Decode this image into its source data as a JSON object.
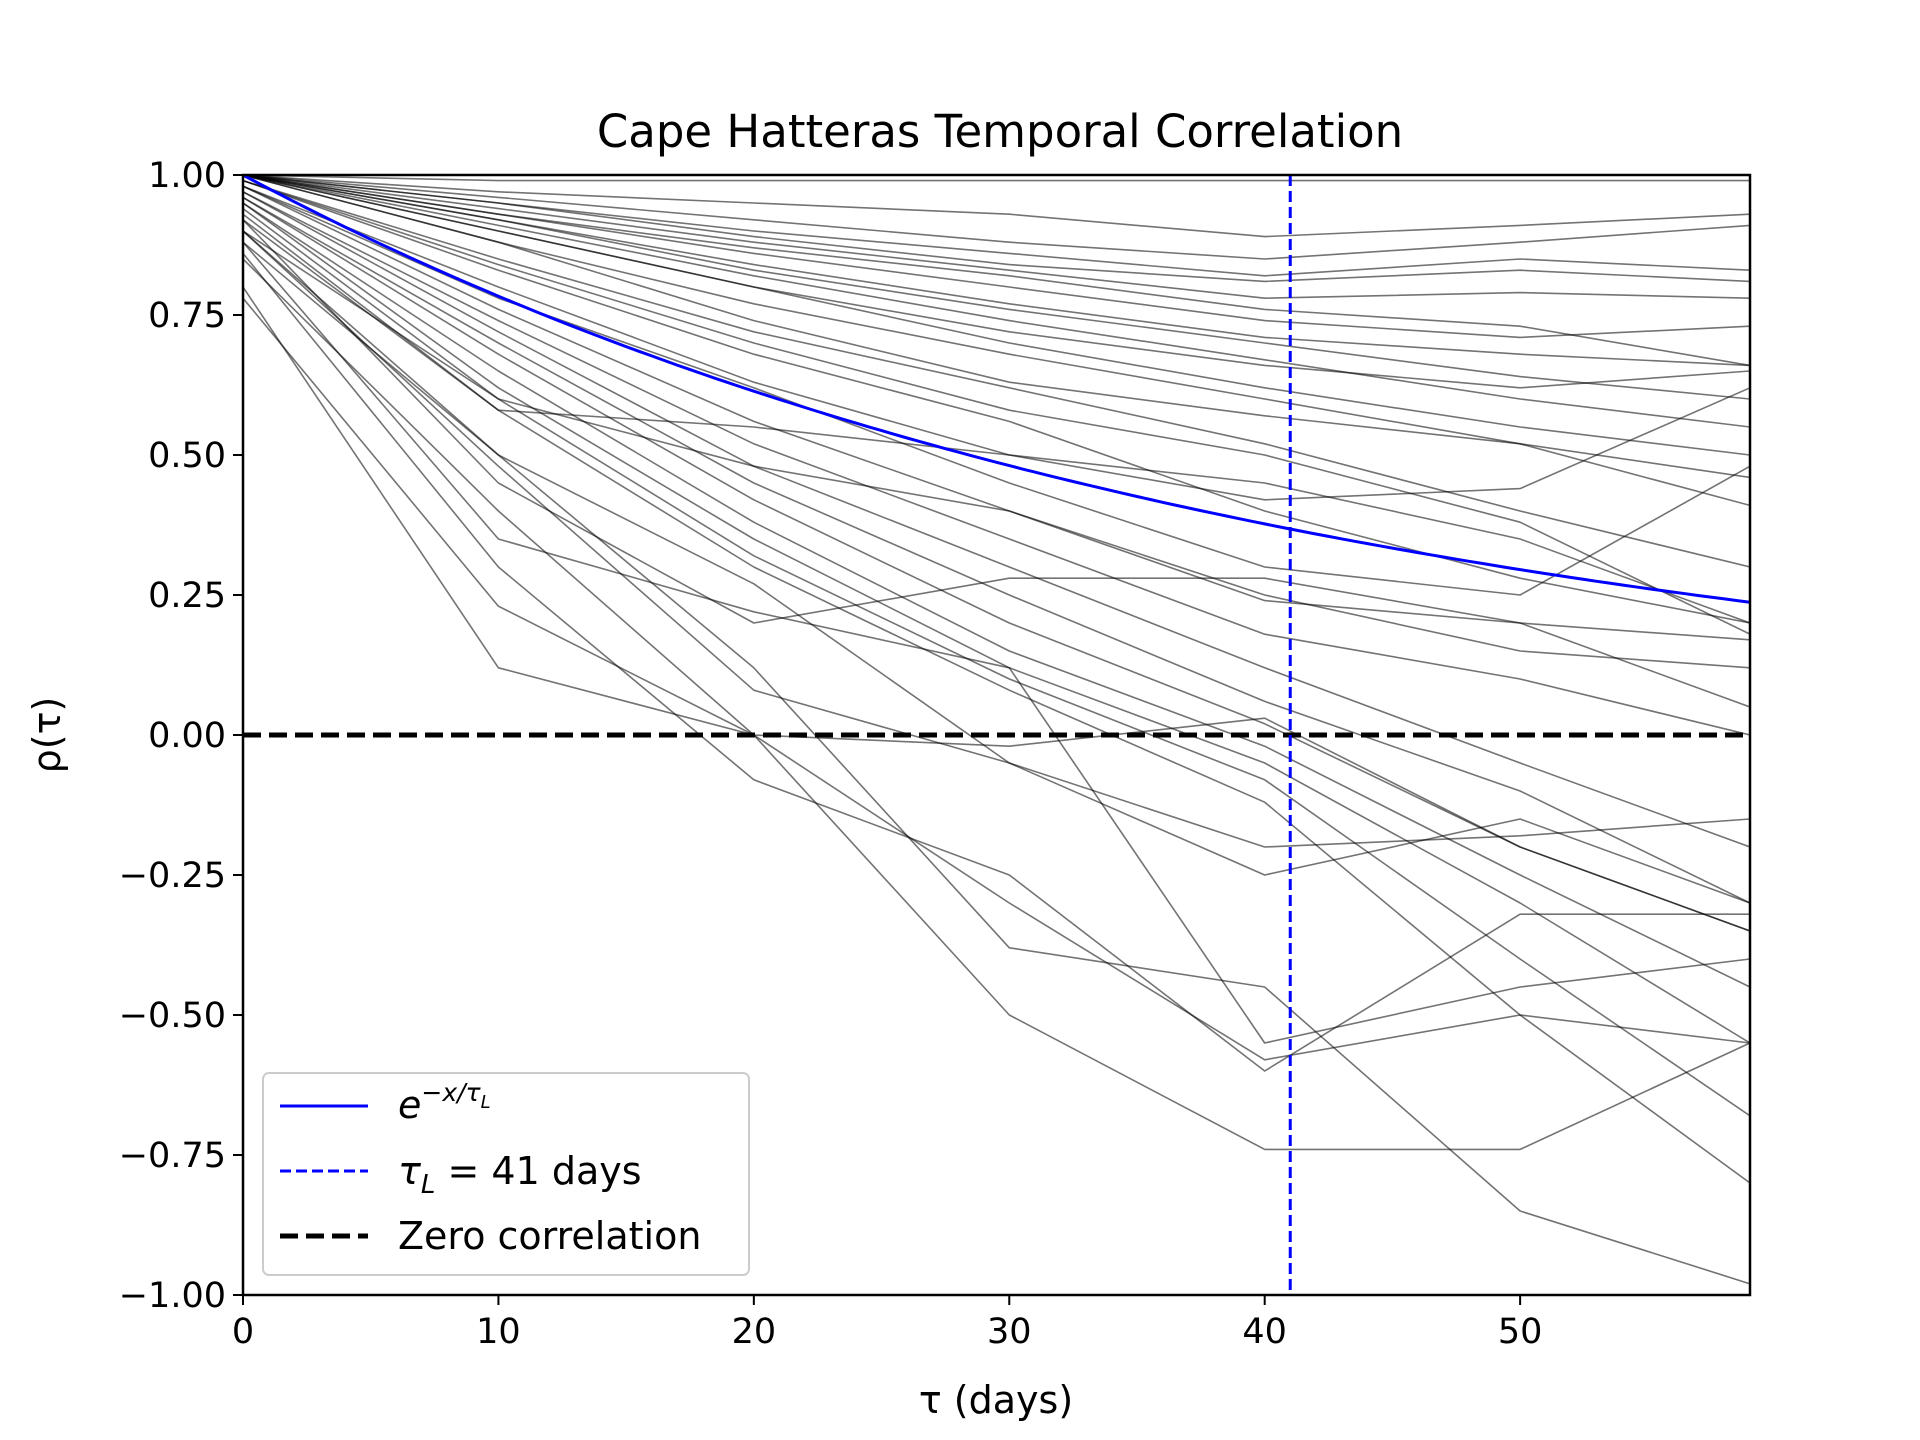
{
  "chart_data": {
    "type": "line",
    "title": "Cape Hatteras Temporal Correlation",
    "xlabel": "τ (days)",
    "ylabel": "ρ(τ)",
    "xlim": [
      0,
      59
    ],
    "ylim": [
      -1.0,
      1.0
    ],
    "xticks": [
      0,
      10,
      20,
      30,
      40,
      50
    ],
    "xtick_labels": [
      "0",
      "10",
      "20",
      "30",
      "40",
      "50"
    ],
    "yticks": [
      1.0,
      0.75,
      0.5,
      0.25,
      0.0,
      -0.25,
      -0.5,
      -0.75,
      -1.0
    ],
    "ytick_labels": [
      "1.00",
      "0.75",
      "0.50",
      "0.25",
      "0.00",
      "−0.25",
      "−0.50",
      "−0.75",
      "−1.00"
    ],
    "grid": false,
    "legend_position": "lower-left",
    "colors": {
      "fit": "#0000ff",
      "tau_line": "#0000ff",
      "zero_line": "#000000",
      "ensemble": "#000000"
    },
    "tau_L": 41,
    "legend": [
      {
        "label_base": "e",
        "label_sup": "−x/τ",
        "label_sup_sub": "L"
      },
      {
        "label_pre": "τ",
        "label_sub": "L",
        "label_post": " = 41 days"
      },
      {
        "label": "Zero correlation"
      }
    ],
    "series": [
      {
        "x": [
          0,
          10,
          20,
          30,
          40,
          50,
          59
        ],
        "y": [
          1.0,
          0.99,
          0.99,
          0.99,
          0.99,
          0.99,
          0.99
        ]
      },
      {
        "x": [
          0,
          10,
          20,
          30,
          40,
          50,
          59
        ],
        "y": [
          1.0,
          0.97,
          0.95,
          0.93,
          0.89,
          0.91,
          0.93
        ]
      },
      {
        "x": [
          0,
          10,
          20,
          30,
          40,
          50,
          59
        ],
        "y": [
          1.0,
          0.96,
          0.92,
          0.88,
          0.85,
          0.88,
          0.91
        ]
      },
      {
        "x": [
          0,
          10,
          20,
          30,
          40,
          50,
          59
        ],
        "y": [
          1.0,
          0.95,
          0.9,
          0.86,
          0.82,
          0.85,
          0.83
        ]
      },
      {
        "x": [
          0,
          10,
          20,
          30,
          40,
          50,
          59
        ],
        "y": [
          1.0,
          0.95,
          0.89,
          0.84,
          0.81,
          0.83,
          0.81
        ]
      },
      {
        "x": [
          0,
          10,
          20,
          30,
          40,
          50,
          59
        ],
        "y": [
          1.0,
          0.94,
          0.88,
          0.83,
          0.78,
          0.79,
          0.78
        ]
      },
      {
        "x": [
          0,
          10,
          20,
          30,
          40,
          50,
          59
        ],
        "y": [
          1.0,
          0.93,
          0.87,
          0.82,
          0.76,
          0.73,
          0.66
        ]
      },
      {
        "x": [
          0,
          10,
          20,
          30,
          40,
          50,
          59
        ],
        "y": [
          1.0,
          0.93,
          0.86,
          0.8,
          0.74,
          0.71,
          0.73
        ]
      },
      {
        "x": [
          0,
          10,
          20,
          30,
          40,
          50,
          59
        ],
        "y": [
          1.0,
          0.92,
          0.84,
          0.77,
          0.71,
          0.68,
          0.66
        ]
      },
      {
        "x": [
          0,
          10,
          20,
          30,
          40,
          50,
          59
        ],
        "y": [
          1.0,
          0.92,
          0.83,
          0.76,
          0.7,
          0.64,
          0.6
        ]
      },
      {
        "x": [
          0,
          10,
          20,
          30,
          40,
          50,
          59
        ],
        "y": [
          1.0,
          0.91,
          0.82,
          0.74,
          0.67,
          0.6,
          0.55
        ]
      },
      {
        "x": [
          0,
          10,
          20,
          30,
          40,
          50,
          59
        ],
        "y": [
          1.0,
          0.9,
          0.8,
          0.72,
          0.66,
          0.62,
          0.65
        ]
      },
      {
        "x": [
          0,
          10,
          20,
          30,
          40,
          50,
          59
        ],
        "y": [
          1.0,
          0.9,
          0.8,
          0.7,
          0.62,
          0.55,
          0.5
        ]
      },
      {
        "x": [
          0,
          10,
          20,
          30,
          40,
          50,
          59
        ],
        "y": [
          1.0,
          0.88,
          0.77,
          0.68,
          0.6,
          0.52,
          0.46
        ]
      },
      {
        "x": [
          0,
          10,
          20,
          30,
          40,
          50,
          59
        ],
        "y": [
          1.0,
          0.88,
          0.74,
          0.63,
          0.57,
          0.52,
          0.41
        ]
      },
      {
        "x": [
          0,
          10,
          20,
          30,
          40,
          50,
          59
        ],
        "y": [
          0.99,
          0.85,
          0.72,
          0.62,
          0.52,
          0.4,
          0.3
        ]
      },
      {
        "x": [
          0,
          10,
          20,
          30,
          40,
          50,
          59
        ],
        "y": [
          0.99,
          0.84,
          0.7,
          0.58,
          0.5,
          0.38,
          0.18
        ]
      },
      {
        "x": [
          0,
          10,
          20,
          30,
          40,
          50,
          59
        ],
        "y": [
          0.99,
          0.83,
          0.68,
          0.56,
          0.4,
          0.28,
          0.2
        ]
      },
      {
        "x": [
          0,
          10,
          20,
          30,
          40,
          50,
          59
        ],
        "y": [
          0.98,
          0.8,
          0.63,
          0.5,
          0.42,
          0.44,
          0.62
        ]
      },
      {
        "x": [
          0,
          10,
          20,
          30,
          40,
          50,
          59
        ],
        "y": [
          0.98,
          0.78,
          0.62,
          0.45,
          0.3,
          0.25,
          0.48
        ]
      },
      {
        "x": [
          0,
          10,
          20,
          30,
          40,
          50,
          59
        ],
        "y": [
          0.98,
          0.76,
          0.56,
          0.4,
          0.24,
          0.2,
          0.17
        ]
      },
      {
        "x": [
          0,
          10,
          20,
          30,
          40,
          50,
          59
        ],
        "y": [
          0.97,
          0.74,
          0.52,
          0.35,
          0.18,
          0.1,
          0.0
        ]
      },
      {
        "x": [
          0,
          10,
          20,
          30,
          40,
          50,
          59
        ],
        "y": [
          0.97,
          0.72,
          0.48,
          0.3,
          0.12,
          -0.05,
          -0.2
        ]
      },
      {
        "x": [
          0,
          10,
          20,
          30,
          40,
          50,
          59
        ],
        "y": [
          0.96,
          0.7,
          0.45,
          0.25,
          0.06,
          -0.1,
          -0.3
        ]
      },
      {
        "x": [
          0,
          10,
          20,
          30,
          40,
          50,
          59
        ],
        "y": [
          0.96,
          0.68,
          0.42,
          0.2,
          0.02,
          -0.2,
          -0.35
        ]
      },
      {
        "x": [
          0,
          10,
          20,
          30,
          40,
          50,
          59
        ],
        "y": [
          0.95,
          0.65,
          0.38,
          0.15,
          -0.02,
          -0.25,
          -0.45
        ]
      },
      {
        "x": [
          0,
          10,
          20,
          30,
          40,
          50,
          59
        ],
        "y": [
          0.95,
          0.62,
          0.35,
          0.12,
          -0.05,
          -0.3,
          -0.55
        ]
      },
      {
        "x": [
          0,
          10,
          20,
          30,
          40,
          50,
          59
        ],
        "y": [
          0.94,
          0.6,
          0.32,
          0.1,
          -0.08,
          -0.4,
          -0.68
        ]
      },
      {
        "x": [
          0,
          10,
          20,
          30,
          40,
          50,
          59
        ],
        "y": [
          0.93,
          0.58,
          0.3,
          0.08,
          -0.12,
          -0.5,
          -0.8
        ]
      },
      {
        "x": [
          0,
          10,
          20,
          30,
          40,
          50,
          59
        ],
        "y": [
          0.92,
          0.58,
          0.55,
          0.5,
          0.45,
          0.35,
          0.2
        ]
      },
      {
        "x": [
          0,
          10,
          20,
          30,
          40,
          50,
          59
        ],
        "y": [
          0.9,
          0.6,
          0.48,
          0.4,
          0.25,
          0.15,
          0.12
        ]
      },
      {
        "x": [
          0,
          10,
          20,
          30,
          40,
          50,
          59
        ],
        "y": [
          0.92,
          0.45,
          0.2,
          0.28,
          0.28,
          0.2,
          0.05
        ]
      },
      {
        "x": [
          0,
          10,
          20,
          30,
          40,
          50,
          59
        ],
        "y": [
          0.88,
          0.5,
          0.27,
          -0.05,
          -0.2,
          -0.18,
          -0.15
        ]
      },
      {
        "x": [
          0,
          10,
          20,
          30,
          40,
          50,
          59
        ],
        "y": [
          0.9,
          0.48,
          0.08,
          -0.05,
          -0.25,
          -0.15,
          -0.3
        ]
      },
      {
        "x": [
          0,
          10,
          20,
          30,
          40,
          50,
          59
        ],
        "y": [
          0.85,
          0.4,
          0.0,
          -0.3,
          -0.58,
          -0.5,
          -0.55
        ]
      },
      {
        "x": [
          0,
          10,
          20,
          30,
          40,
          50,
          59
        ],
        "y": [
          0.86,
          0.3,
          -0.08,
          -0.25,
          -0.6,
          -0.32,
          -0.32
        ]
      },
      {
        "x": [
          0,
          10,
          20,
          30,
          40,
          50,
          59
        ],
        "y": [
          0.88,
          0.35,
          0.22,
          0.12,
          -0.55,
          -0.45,
          -0.4
        ]
      },
      {
        "x": [
          0,
          10,
          20,
          30,
          40,
          50,
          59
        ],
        "y": [
          0.78,
          0.23,
          0.0,
          -0.5,
          -0.74,
          -0.74,
          -0.55
        ]
      },
      {
        "x": [
          0,
          10,
          20,
          30,
          40,
          50,
          59
        ],
        "y": [
          0.8,
          0.12,
          0.0,
          -0.02,
          0.03,
          -0.2,
          -0.35
        ]
      },
      {
        "x": [
          0,
          10,
          20,
          30,
          40,
          50,
          59
        ],
        "y": [
          0.9,
          0.5,
          0.12,
          -0.38,
          -0.45,
          -0.85,
          -0.98
        ]
      }
    ]
  }
}
